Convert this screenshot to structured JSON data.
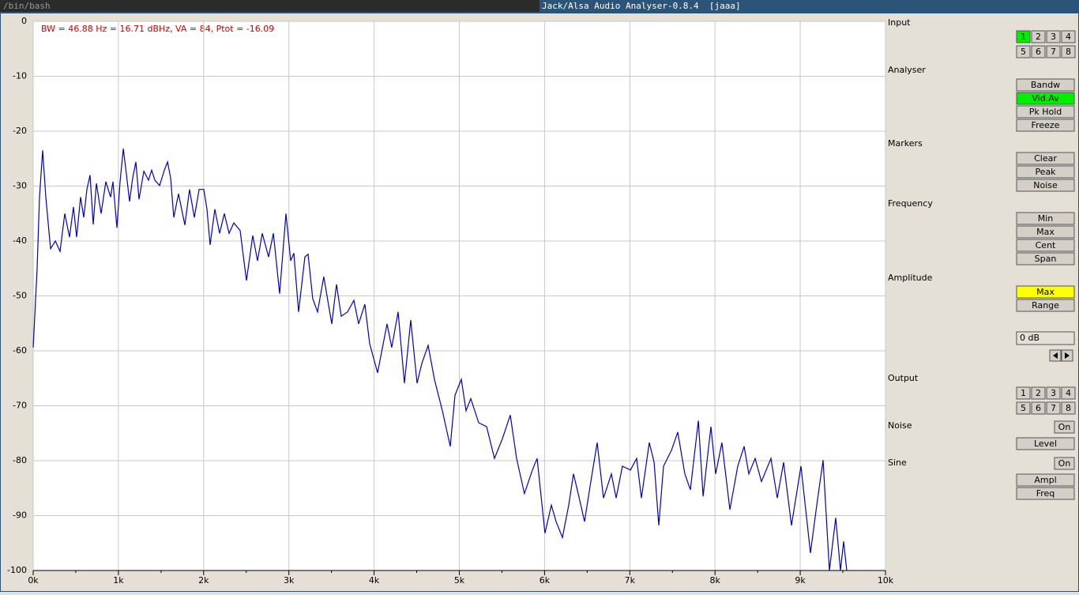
{
  "window": {
    "terminal_title": "/bin/bash",
    "title": "Jack/Alsa Audio Analyser-0.8.4  [jaaa]"
  },
  "chart_data": {
    "type": "line",
    "annotation": "BW = 46.88 Hz = 16.71 dBHz, VA = 84, Ptot = -16.09",
    "xlim": [
      0,
      10000
    ],
    "ylim": [
      -100,
      0
    ],
    "grid": true,
    "xticks": [
      {
        "value": 0,
        "label": "0k"
      },
      {
        "value": 1000,
        "label": "1k"
      },
      {
        "value": 2000,
        "label": "2k"
      },
      {
        "value": 3000,
        "label": "3k"
      },
      {
        "value": 4000,
        "label": "4k"
      },
      {
        "value": 5000,
        "label": "5k"
      },
      {
        "value": 6000,
        "label": "6k"
      },
      {
        "value": 7000,
        "label": "7k"
      },
      {
        "value": 8000,
        "label": "8k"
      },
      {
        "value": 9000,
        "label": "9k"
      },
      {
        "value": 10000,
        "label": "10k"
      }
    ],
    "yticks": [
      0,
      -10,
      -20,
      -30,
      -40,
      -50,
      -60,
      -70,
      -80,
      -90,
      -100
    ],
    "x": [
      0,
      46,
      74,
      111,
      148,
      204,
      260,
      315,
      371,
      426,
      473,
      510,
      556,
      593,
      630,
      667,
      704,
      741,
      797,
      853,
      908,
      936,
      982,
      1019,
      1057,
      1094,
      1131,
      1168,
      1205,
      1242,
      1298,
      1353,
      1390,
      1427,
      1483,
      1539,
      1576,
      1613,
      1650,
      1705,
      1779,
      1835,
      1891,
      1947,
      2002,
      2039,
      2076,
      2132,
      2187,
      2243,
      2298,
      2354,
      2428,
      2502,
      2576,
      2632,
      2688,
      2762,
      2818,
      2892,
      2966,
      3021,
      3058,
      3114,
      3188,
      3225,
      3280,
      3336,
      3410,
      3503,
      3559,
      3614,
      3689,
      3763,
      3818,
      3892,
      3948,
      4041,
      4152,
      4207,
      4282,
      4356,
      4430,
      4504,
      4560,
      4634,
      4708,
      4801,
      4893,
      4949,
      5023,
      5079,
      5134,
      5227,
      5320,
      5412,
      5505,
      5598,
      5672,
      5764,
      5857,
      5913,
      6005,
      6080,
      6135,
      6209,
      6284,
      6339,
      6395,
      6469,
      6543,
      6617,
      6691,
      6784,
      6840,
      6914,
      7007,
      7081,
      7136,
      7229,
      7285,
      7340,
      7396,
      7489,
      7563,
      7646,
      7711,
      7804,
      7860,
      7952,
      8007,
      8081,
      8174,
      8267,
      8341,
      8397,
      8471,
      8545,
      8656,
      8730,
      8804,
      8897,
      9008,
      9120,
      9194,
      9268,
      9342,
      9416,
      9472,
      9509,
      9546
    ],
    "series": [
      {
        "color": "#0000c0",
        "values": [
          -59.4,
          -45,
          -32,
          -23.5,
          -32,
          -41.4,
          -40,
          -41.9,
          -35,
          -39.3,
          -33.8,
          -39.3,
          -32,
          -35.7,
          -30.6,
          -28,
          -37,
          -29.5,
          -35,
          -29.2,
          -32,
          -29.2,
          -37.6,
          -29.2,
          -23.2,
          -27.8,
          -32.8,
          -28.5,
          -25.6,
          -32.4,
          -27.3,
          -28.9,
          -27.1,
          -28.9,
          -29.9,
          -27.1,
          -25.6,
          -28.5,
          -35.7,
          -31.4,
          -37.1,
          -30.6,
          -35.7,
          -30.6,
          -30.6,
          -34.2,
          -40.7,
          -34.2,
          -38.6,
          -35,
          -38.6,
          -36.7,
          -38.1,
          -47.2,
          -39,
          -43.6,
          -38.6,
          -42.9,
          -38.6,
          -49.6,
          -35,
          -43.6,
          -42.2,
          -52.9,
          -42.9,
          -42.4,
          -50.5,
          -52.9,
          -46.5,
          -55.1,
          -47.9,
          -53.7,
          -52.9,
          -50.8,
          -55.1,
          -51.5,
          -58.7,
          -64,
          -55.1,
          -59.4,
          -52.9,
          -65.9,
          -54.4,
          -65.9,
          -62.3,
          -59,
          -65.2,
          -70.9,
          -77.4,
          -68.1,
          -65.2,
          -70.9,
          -68.7,
          -73.1,
          -73.8,
          -79.6,
          -76,
          -71.7,
          -79.6,
          -86,
          -81.7,
          -79.6,
          -93.2,
          -88.1,
          -91.1,
          -94,
          -88.1,
          -82.4,
          -86,
          -91.1,
          -83.8,
          -76.7,
          -86.8,
          -82.4,
          -86.8,
          -81,
          -81.7,
          -79.6,
          -86.8,
          -76.7,
          -80.3,
          -91.8,
          -81,
          -78.1,
          -74.8,
          -82.4,
          -85.3,
          -72.7,
          -86.5,
          -73.8,
          -82.4,
          -76.7,
          -88.9,
          -81,
          -77.4,
          -82.4,
          -79.6,
          -83.8,
          -79.6,
          -86.8,
          -80.3,
          -91.8,
          -81,
          -96.8,
          -88.1,
          -79.9,
          -100,
          -90.4,
          -100,
          -94.7,
          -100
        ]
      }
    ]
  },
  "panel": [
    {
      "label": "Input",
      "buttons": [
        {
          "label": "1",
          "color": "#00ee00"
        },
        "2",
        "3",
        "4",
        "5",
        "6",
        "7",
        "8"
      ]
    },
    {
      "label": "Analyser",
      "buttons": [
        "Bandw",
        {
          "label": "Vid.Av",
          "color": "#00ee00"
        },
        "Pk Hold",
        "Freeze"
      ]
    },
    {
      "label": "Markers",
      "buttons": [
        "Clear",
        "Peak",
        "Noise"
      ]
    },
    {
      "label": "Frequency",
      "buttons": [
        "Min",
        "Max",
        "Cent",
        "Span"
      ]
    },
    {
      "label": "Amplitude",
      "buttons": [
        {
          "label": "Max",
          "color": "#ffff00"
        },
        "Range"
      ],
      "field": "0 dB"
    },
    {
      "label": "Output",
      "buttons": [
        "1",
        "2",
        "3",
        "4",
        "5",
        "6",
        "7",
        "8"
      ]
    },
    {
      "label": "Noise",
      "buttons": [
        "On",
        "Level"
      ]
    },
    {
      "label": "Sine",
      "buttons": [
        "On",
        "Ampl",
        "Freq"
      ]
    }
  ]
}
